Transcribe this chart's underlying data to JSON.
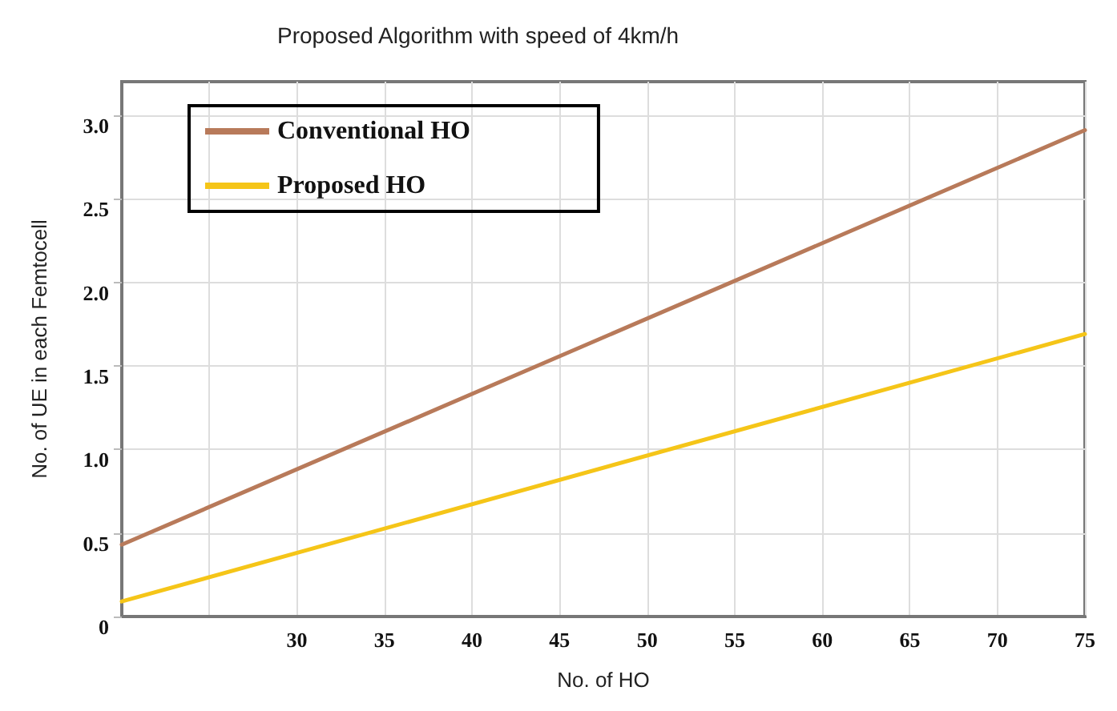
{
  "chart_data": {
    "type": "line",
    "title": "Proposed Algorithm with speed of 4km/h",
    "xlabel": "No. of HO",
    "ylabel": "No. of UE in each Femtocell",
    "x": [
      20,
      75
    ],
    "series": [
      {
        "name": "Conventional HO",
        "color": "#b87a5a",
        "values": [
          0.43,
          2.91
        ]
      },
      {
        "name": "Proposed HO",
        "color": "#f5c518",
        "values": [
          0.09,
          1.69
        ]
      }
    ],
    "xlim": [
      20,
      75
    ],
    "xticks": [
      {
        "value": 20,
        "label": null
      },
      {
        "value": 25,
        "label": null
      },
      30,
      35,
      40,
      45,
      50,
      55,
      60,
      65,
      70,
      75
    ],
    "ylim": [
      0,
      3.2
    ],
    "yticks": [
      {
        "value": 0,
        "label": "0"
      },
      0.5,
      {
        "value": 1,
        "label": "1.0"
      },
      1.5,
      {
        "value": 2,
        "label": "2.0"
      },
      2.5,
      {
        "value": 3,
        "label": "3.0"
      }
    ],
    "grid": true,
    "legend": "top left",
    "marker": "none",
    "line_style": "solid"
  }
}
